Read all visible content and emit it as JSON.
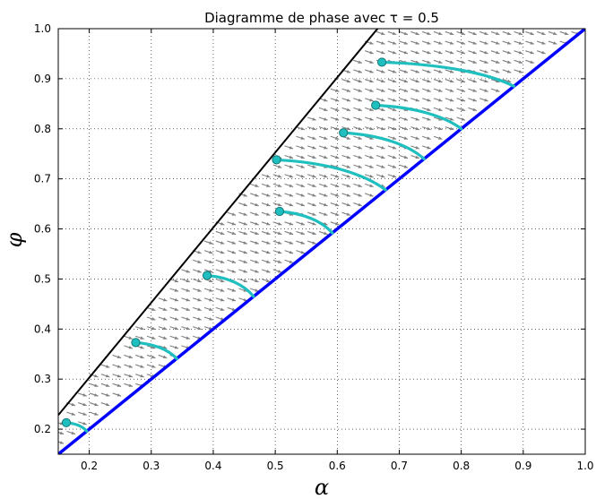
{
  "chart_data": {
    "type": "line",
    "title": "Diagramme de phase avec τ = 0.5",
    "xlabel": "α",
    "ylabel": "φ",
    "xlim": [
      0.15,
      1.0
    ],
    "ylim": [
      0.15,
      1.0
    ],
    "xticks": [
      0.2,
      0.3,
      0.4,
      0.5,
      0.6,
      0.7,
      0.8,
      0.9,
      1.0
    ],
    "yticks": [
      0.2,
      0.3,
      0.4,
      0.5,
      0.6,
      0.7,
      0.8,
      0.9,
      1.0
    ],
    "grid": true,
    "colors": {
      "lower_boundary": "#0000ff",
      "upper_boundary": "#000000",
      "trajectory": "#1fbfbf",
      "marker_edge": "#117777",
      "arrow": "#808080"
    },
    "lower_boundary": {
      "x": [
        0.15,
        1.0
      ],
      "y": [
        0.15,
        1.0
      ]
    },
    "upper_boundary": {
      "x": [
        0.15,
        0.665
      ],
      "y": [
        0.228,
        1.0
      ]
    },
    "trajectories": [
      {
        "start": [
          0.163,
          0.213
        ],
        "end": [
          0.196,
          0.196
        ]
      },
      {
        "start": [
          0.275,
          0.373
        ],
        "end": [
          0.341,
          0.341
        ]
      },
      {
        "start": [
          0.39,
          0.507
        ],
        "end": [
          0.465,
          0.465
        ]
      },
      {
        "start": [
          0.507,
          0.635
        ],
        "end": [
          0.592,
          0.592
        ]
      },
      {
        "start": [
          0.502,
          0.738
        ],
        "end": [
          0.678,
          0.678
        ]
      },
      {
        "start": [
          0.61,
          0.792
        ],
        "end": [
          0.74,
          0.74
        ]
      },
      {
        "start": [
          0.662,
          0.847
        ],
        "end": [
          0.8,
          0.8
        ]
      },
      {
        "start": [
          0.672,
          0.933
        ],
        "end": [
          0.885,
          0.885
        ]
      }
    ]
  }
}
